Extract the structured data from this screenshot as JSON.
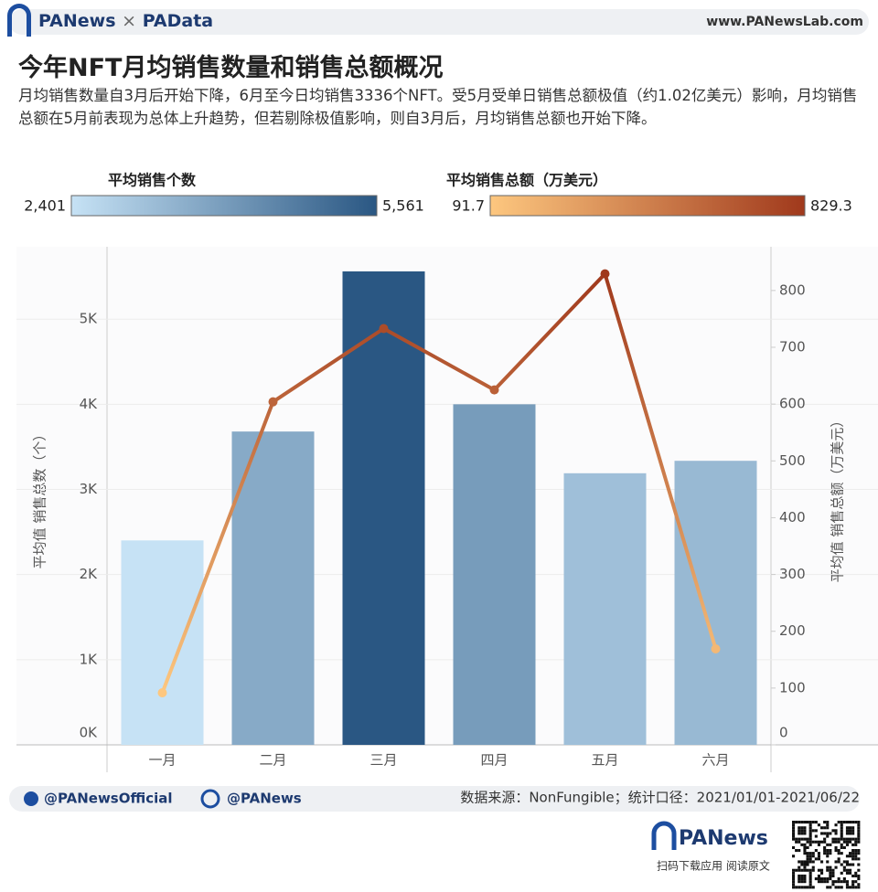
{
  "header": {
    "brand": "PANews",
    "brand2": "PAData",
    "website": "www.PANewsLab.com"
  },
  "chart_data": {
    "type": "bar",
    "title": "今年NFT月均销售数量和销售总额概况",
    "subtitle": "月均销售数量自3月后开始下降，6月至今日均销售3336个NFT。受5月受单日销售总额极值（约1.02亿美元）影响，月均销售总额在5月前表现为总体上升趋势，但若剔除极值影响，则自3月后，月均销售总额也开始下降。",
    "categories": [
      "一月",
      "二月",
      "三月",
      "四月",
      "五月",
      "六月"
    ],
    "series": [
      {
        "name": "平均销售个数",
        "type": "bar",
        "color_range": [
          "#c6e2f5",
          "#2a5783"
        ],
        "range": [
          {
            "value": 2401,
            "label": "2,401"
          },
          {
            "value": 5561,
            "label": "5,561"
          }
        ],
        "values": [
          2401,
          3680,
          5561,
          4000,
          3190,
          3336
        ]
      },
      {
        "name": "平均销售总额（万美元）",
        "type": "line",
        "axis": "y2",
        "color_range": [
          "#fdc77f",
          "#a0391c"
        ],
        "range": [
          91.7,
          829.3
        ],
        "values": [
          91.7,
          604,
          733,
          625,
          829.3,
          169
        ]
      }
    ],
    "ylabel": "平均值 销售总数（个）",
    "y2label": "平均值 销售总额（万美元）",
    "ylim": [
      0,
      5850
    ],
    "yticks": [
      {
        "value": 0,
        "label": "0K"
      },
      {
        "value": 1000,
        "label": "1K"
      },
      {
        "value": 2000,
        "label": "2K"
      },
      {
        "value": 3000,
        "label": "3K"
      },
      {
        "value": 4000,
        "label": "4K"
      },
      {
        "value": 5000,
        "label": "5K"
      }
    ],
    "y2lim": [
      0,
      877
    ],
    "y2ticks": [
      0,
      100,
      200,
      300,
      400,
      500,
      600,
      700,
      800
    ],
    "grid": true
  },
  "footer": {
    "twitter": "@PANewsOfficial",
    "weibo": "@PANews",
    "source": "数据来源：NonFungible；统计口径：2021/01/01-2021/06/22",
    "app_brand": "PANews",
    "app_note": "扫码下载应用  阅读原文"
  }
}
